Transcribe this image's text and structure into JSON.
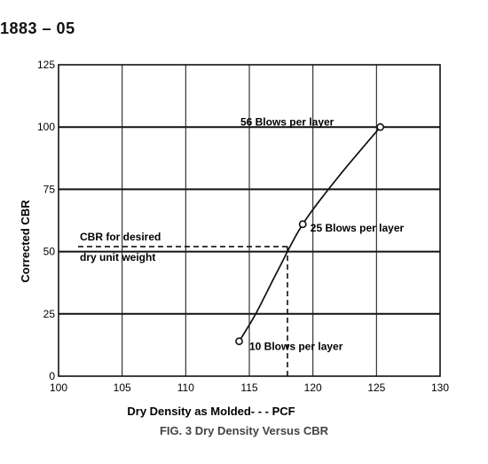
{
  "page": {
    "doc_number": "1883 – 05",
    "caption": "FIG. 3 Dry Density Versus CBR"
  },
  "chart_data": {
    "type": "line",
    "xlabel": "Dry Density as Molded- - -  PCF",
    "ylabel": "Corrected CBR",
    "xlim": [
      100,
      130
    ],
    "ylim": [
      0,
      125
    ],
    "x_ticks": [
      100,
      105,
      110,
      115,
      120,
      125,
      130
    ],
    "y_ticks": [
      0,
      25,
      50,
      75,
      100,
      125
    ],
    "grid": true,
    "series": [
      {
        "x": [
          114.2,
          115.5,
          117.2,
          119.2,
          122.0,
          125.3
        ],
        "y": [
          14,
          25,
          42,
          61,
          80,
          100
        ],
        "markers_at": [
          0,
          3,
          5
        ]
      }
    ],
    "point_labels": [
      {
        "text": "10 Blows per layer",
        "x": 115,
        "y": 12
      },
      {
        "text": "25 Blows per layer",
        "x": 119.8,
        "y": 59.5
      },
      {
        "text": "56 Blows per layer",
        "x": 114.3,
        "y": 102
      }
    ],
    "reference": {
      "label_line1": "CBR for desired",
      "label_line2": "dry unit weight",
      "cbr": 52,
      "density": 118
    }
  }
}
